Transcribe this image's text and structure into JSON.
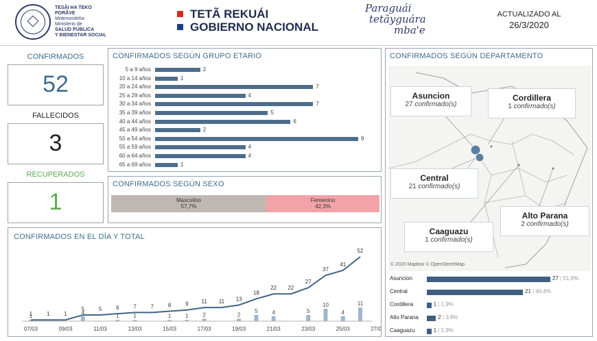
{
  "header": {
    "ministry_lines": [
      "TESÃI HA TEKO",
      "PORÃVE",
      "Motenondeha",
      "Ministerio de",
      "SALUD PÚBLICA",
      "Y BIENESTAR SOCIAL"
    ],
    "gov_line1": "TETÃ REKUÁI",
    "gov_line2": "GOBIERNO NACIONAL",
    "slogan_line1": "Paraguái",
    "slogan_line2": "tetãyguára",
    "slogan_line3": "mba'e",
    "updated_label": "ACTUALIZADO AL",
    "updated_date": "26/3/2020"
  },
  "kpis": {
    "confirmados_label": "CONFIRMADOS",
    "confirmados_value": "52",
    "fallecidos_label": "FALLECIDOS",
    "fallecidos_value": "3",
    "recuperados_label": "RECUPERADOS",
    "recuperados_value": "1"
  },
  "age_panel": {
    "title": "CONFIRMADOS SEGÚN GRUPO ETARIO",
    "groups": [
      {
        "label": "5 a 9 años",
        "value": 2
      },
      {
        "label": "10 a 14 años",
        "value": 1
      },
      {
        "label": "20 a 24 años",
        "value": 7
      },
      {
        "label": "25 a 29 años",
        "value": 4
      },
      {
        "label": "30 a 34 años",
        "value": 7
      },
      {
        "label": "35 a 39 años",
        "value": 5
      },
      {
        "label": "40 a 44 años",
        "value": 6
      },
      {
        "label": "45 a 49 años",
        "value": 2
      },
      {
        "label": "50 a 54 años",
        "value": 9
      },
      {
        "label": "55 a 59 años",
        "value": 4
      },
      {
        "label": "60 a 64 años",
        "value": 4
      },
      {
        "label": "65 a 69 años",
        "value": 1
      }
    ]
  },
  "sex_panel": {
    "title": "CONFIRMADOS SEGÚN SEXO",
    "masc_label": "Masculino",
    "masc_pct": "57,7%",
    "masc_share": 0.577,
    "fem_label": "Femenino",
    "fem_pct": "42,3%",
    "masc_color": "#bfb7b2",
    "fem_color": "#f2a3a8"
  },
  "daily_panel": {
    "title": "CONFIRMADOS EN EL DÍA Y TOTAL",
    "x_ticks": [
      "07/03",
      "09/03",
      "11/03",
      "13/03",
      "15/03",
      "17/03",
      "19/03",
      "21/03",
      "23/03",
      "25/03",
      "27/03"
    ],
    "cumulative": [
      1,
      1,
      1,
      5,
      5,
      6,
      7,
      7,
      8,
      9,
      11,
      11,
      13,
      18,
      22,
      22,
      27,
      37,
      41,
      52
    ],
    "daily": [
      1,
      0,
      0,
      4,
      0,
      1,
      1,
      0,
      1,
      1,
      2,
      0,
      2,
      5,
      4,
      0,
      5,
      10,
      4,
      11
    ]
  },
  "dept_panel": {
    "title": "CONFIRMADOS SEGÚN DEPARTAMENTO",
    "attribution": "© 2020 Mapbox © OpenStreetMap",
    "callouts": [
      {
        "name": "Asuncion",
        "count": "27",
        "suffix": "confirmado(s)"
      },
      {
        "name": "Cordillera",
        "count": "1",
        "suffix": "confirmado(s)"
      },
      {
        "name": "Central",
        "count": "21",
        "suffix": "confirmado(s)"
      },
      {
        "name": "Alto Parana",
        "count": "2",
        "suffix": "confirmado(s)"
      },
      {
        "name": "Caaguazu",
        "count": "1",
        "suffix": "confirmado(s)"
      }
    ],
    "bars": [
      {
        "label": "Asuncion",
        "value": 27,
        "pct": "51,9%"
      },
      {
        "label": "Central",
        "value": 21,
        "pct": "40,4%"
      },
      {
        "label": "Cordillera",
        "value": 1,
        "pct": "1,9%"
      },
      {
        "label": "Alto Parana",
        "value": 2,
        "pct": "3,8%"
      },
      {
        "label": "Caaguazu",
        "value": 1,
        "pct": "1,9%"
      }
    ]
  },
  "colors": {
    "accent_blue": "#3d6c8f",
    "bar_blue": "#4e6d8b",
    "flag_red": "#d52b1e",
    "flag_blue": "#1f3d8a",
    "recovered_green": "#5cab4c"
  }
}
